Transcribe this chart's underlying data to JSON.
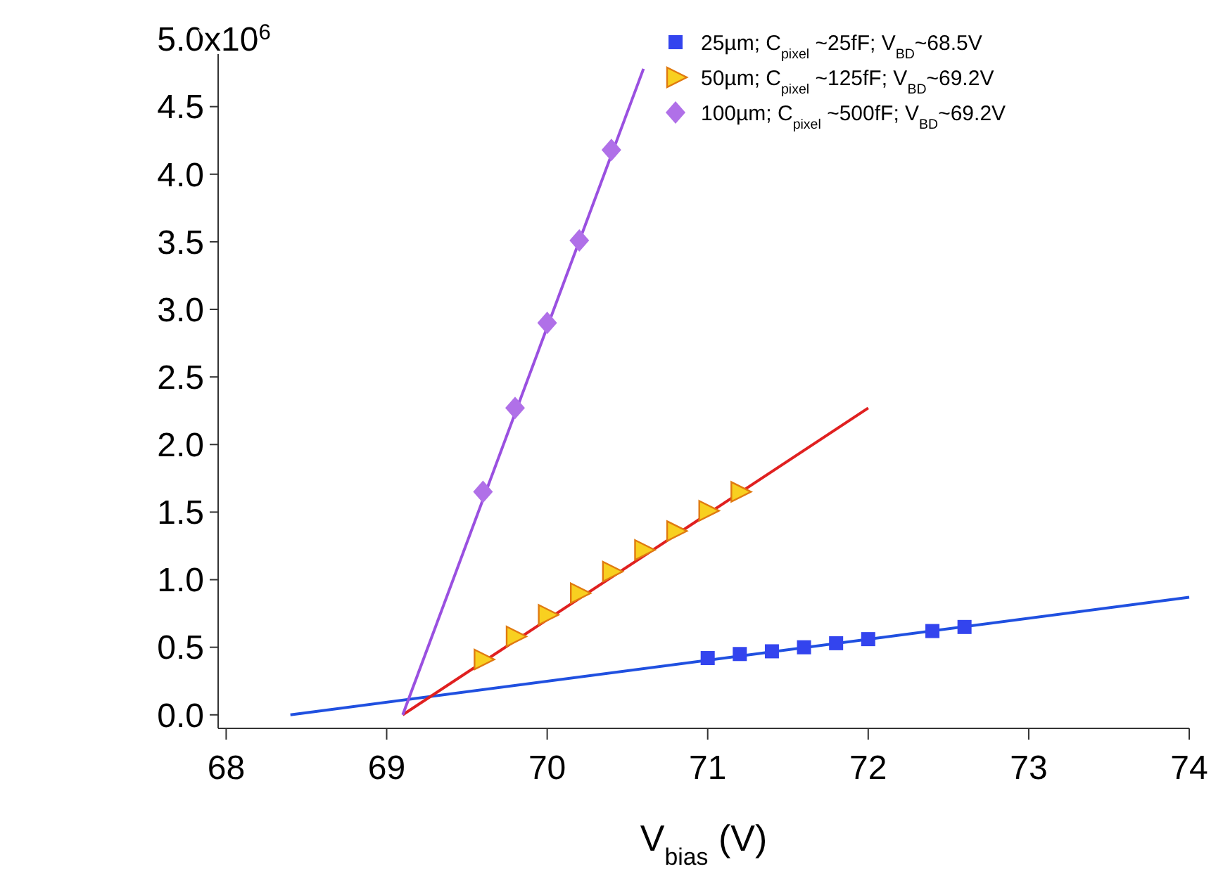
{
  "chart_data": {
    "type": "scatter",
    "xlabel": "V$_{bias}$ (V)",
    "xlim": [
      67.95,
      74.0
    ],
    "xticks": [
      68,
      69,
      70,
      71,
      72,
      73,
      74
    ],
    "ylim": [
      -0.1,
      5.06
    ],
    "yticks": [
      {
        "value": 0,
        "label": "0.0"
      },
      {
        "value": 0.5,
        "label": "0.5"
      },
      {
        "value": 1,
        "label": "1.0"
      },
      {
        "value": 1.5,
        "label": "1.5"
      },
      {
        "value": 2,
        "label": "2.0"
      },
      {
        "value": 2.5,
        "label": "2.5"
      },
      {
        "value": 3,
        "label": "3.0"
      },
      {
        "value": 3.5,
        "label": "3.5"
      },
      {
        "value": 4,
        "label": "4.0"
      },
      {
        "value": 4.5,
        "label": "4.5"
      },
      {
        "value": 5,
        "label": "5.0"
      }
    ],
    "annotations": [
      "x10$^{6}$"
    ],
    "grid": false,
    "legend": "top right",
    "series": [
      {
        "type": "line",
        "color": "#2050e0",
        "x": [
          68.4,
          74.0
        ],
        "values": [
          0,
          0.87
        ]
      },
      {
        "type": "line",
        "color": "#e02020",
        "x": [
          69.1,
          72.0
        ],
        "values": [
          0,
          2.27
        ]
      },
      {
        "type": "line",
        "color": "#9a50e0",
        "x": [
          69.1,
          70.6
        ],
        "values": [
          0,
          4.78
        ]
      },
      {
        "name": "25µm; C$_{pixel}$ ~25fF; V$_{BD}$~68.5V",
        "color": "#3344ee",
        "marker": "square",
        "x": [
          71.0,
          71.2,
          71.4,
          71.6,
          71.8,
          72.0,
          72.4,
          72.6
        ],
        "values": [
          0.42,
          0.45,
          0.47,
          0.5,
          0.53,
          0.56,
          0.62,
          0.65
        ]
      },
      {
        "name": "50µm; C$_{pixel}$ ~125fF; V$_{BD}$~69.2V",
        "color": "#f8d020",
        "marker": "triangle",
        "x": [
          69.6,
          69.8,
          70.0,
          70.2,
          70.4,
          70.6,
          70.8,
          71.0,
          71.2
        ],
        "values": [
          0.41,
          0.58,
          0.74,
          0.9,
          1.06,
          1.22,
          1.36,
          1.51,
          1.65
        ]
      },
      {
        "name": "100µm; C$_{pixel}$ ~500fF; V$_{BD}$~69.2V",
        "color": "#b070e8",
        "marker": "diamond",
        "x": [
          69.6,
          69.8,
          70.0,
          70.2,
          70.4
        ],
        "values": [
          1.65,
          2.27,
          2.9,
          3.51,
          4.18
        ]
      }
    ]
  }
}
